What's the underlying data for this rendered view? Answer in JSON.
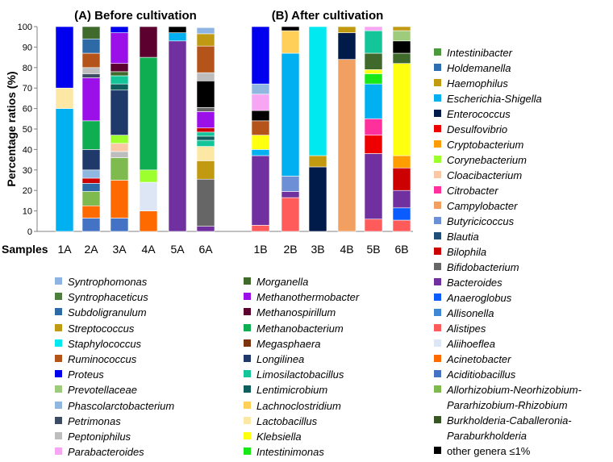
{
  "chart_data": {
    "type": "stacked-bar",
    "ylabel": "Percentage ratios (%)",
    "xlabel": "Samples",
    "ylim": [
      0,
      100
    ],
    "yticks": [
      0,
      10,
      20,
      30,
      40,
      50,
      60,
      70,
      80,
      90,
      100
    ],
    "panels": [
      {
        "title": "(A) Before cultivation",
        "samples": [
          {
            "name": "1A",
            "segments": [
              {
                "taxon": "Escherichia-Shigella",
                "value": 60
              },
              {
                "taxon": "Lactobacillus",
                "value": 10
              },
              {
                "taxon": "Proteus",
                "value": 30
              }
            ]
          },
          {
            "name": "2A",
            "segments": [
              {
                "taxon": "Aciditiobacillus",
                "value": 6.5
              },
              {
                "taxon": "Acinetobacter",
                "value": 6
              },
              {
                "taxon": "Allorhizobium-Neorhizobium-Pararhizobium-Rhizobium",
                "value": 7
              },
              {
                "taxon": "Subdoligranulum",
                "value": 4
              },
              {
                "taxon": "Bilophila",
                "value": 2.5
              },
              {
                "taxon": "Phascolarctobacterium",
                "value": 4
              },
              {
                "taxon": "Longilinea",
                "value": 10
              },
              {
                "taxon": "Methanobacterium",
                "value": 14
              },
              {
                "taxon": "Methanothermobacter",
                "value": 21
              },
              {
                "taxon": "Petrimonas",
                "value": 2
              },
              {
                "taxon": "Peptoniphilus",
                "value": 3
              },
              {
                "taxon": "Ruminococcus",
                "value": 7
              },
              {
                "taxon": "Subdoligranulum",
                "value": 7
              },
              {
                "taxon": "Morganella",
                "value": 6
              }
            ]
          },
          {
            "name": "3A",
            "segments": [
              {
                "taxon": "Aciditiobacillus",
                "value": 6.5
              },
              {
                "taxon": "Acinetobacter",
                "value": 18.5
              },
              {
                "taxon": "Allorhizobium-Neorhizobium-Pararhizobium-Rhizobium",
                "value": 11
              },
              {
                "taxon": "Peptoniphilus",
                "value": 3
              },
              {
                "taxon": "Cloacibacterium",
                "value": 4
              },
              {
                "taxon": "Corynebacterium",
                "value": 4
              },
              {
                "taxon": "Longilinea",
                "value": 22
              },
              {
                "taxon": "Lentimicrobium",
                "value": 3
              },
              {
                "taxon": "Limosilactobacillus",
                "value": 4
              },
              {
                "taxon": "Morganella",
                "value": 2
              },
              {
                "taxon": "Methanospirillum",
                "value": 4
              },
              {
                "taxon": "Methanothermobacter",
                "value": 15
              },
              {
                "taxon": "Proteus",
                "value": 3
              }
            ]
          },
          {
            "name": "4A",
            "segments": [
              {
                "taxon": "Acinetobacter",
                "value": 10
              },
              {
                "taxon": "Aliihoeflea",
                "value": 14
              },
              {
                "taxon": "Corynebacterium",
                "value": 6
              },
              {
                "taxon": "Methanobacterium",
                "value": 55
              },
              {
                "taxon": "Methanospirillum",
                "value": 15
              }
            ]
          },
          {
            "name": "5A",
            "segments": [
              {
                "taxon": "Bacteroides",
                "value": 93
              },
              {
                "taxon": "Escherichia-Shigella",
                "value": 4
              },
              {
                "taxon": "other genera ≤1%",
                "value": 3
              }
            ]
          },
          {
            "name": "6A",
            "segments": [
              {
                "taxon": "Bacteroides",
                "value": 2.5
              },
              {
                "taxon": "Bifidobacterium",
                "value": 23
              },
              {
                "taxon": "Haemophilus",
                "value": 9
              },
              {
                "taxon": "Lactobacillus",
                "value": 7
              },
              {
                "taxon": "Limosilactobacillus",
                "value": 3
              },
              {
                "taxon": "Lentimicrobium",
                "value": 2
              },
              {
                "taxon": "Limosilactobacillus",
                "value": 2
              },
              {
                "taxon": "Bilophila",
                "value": 2
              },
              {
                "taxon": "Methanothermobacter",
                "value": 8
              },
              {
                "taxon": "Bifidobacterium",
                "value": 2
              },
              {
                "taxon": "other genera ≤1%",
                "value": 13
              },
              {
                "taxon": "Peptoniphilus",
                "value": 4
              },
              {
                "taxon": "Ruminococcus",
                "value": 13
              },
              {
                "taxon": "Streptococcus",
                "value": 6
              },
              {
                "taxon": "Syntrophomonas",
                "value": 3
              }
            ]
          }
        ]
      },
      {
        "title": "(B) After cultivation",
        "samples": [
          {
            "name": "1B",
            "segments": [
              {
                "taxon": "Alistipes",
                "value": 3
              },
              {
                "taxon": "Bacteroides",
                "value": 34
              },
              {
                "taxon": "Escherichia-Shigella",
                "value": 3
              },
              {
                "taxon": "Klebsiella",
                "value": 7
              },
              {
                "taxon": "Ruminococcus",
                "value": 7
              },
              {
                "taxon": "other genera ≤1%",
                "value": 5
              },
              {
                "taxon": "Parabacteroides",
                "value": 8
              },
              {
                "taxon": "Phascolarctobacterium",
                "value": 5
              },
              {
                "taxon": "Proteus",
                "value": 28
              }
            ]
          },
          {
            "name": "2B",
            "segments": [
              {
                "taxon": "Alistipes",
                "value": 16.5
              },
              {
                "taxon": "Bacteroides",
                "value": 3
              },
              {
                "taxon": "Butyricicoccus",
                "value": 7.5
              },
              {
                "taxon": "Escherichia-Shigella",
                "value": 60
              },
              {
                "taxon": "Lachnoclostridium",
                "value": 11
              },
              {
                "taxon": "other genera ≤1%",
                "value": 2
              }
            ]
          },
          {
            "name": "3B",
            "segments": [
              {
                "taxon": "Enterococcus",
                "value": 31.5
              },
              {
                "taxon": "Haemophilus",
                "value": 5.5
              },
              {
                "taxon": "Staphylococcus",
                "value": 63
              }
            ]
          },
          {
            "name": "4B",
            "segments": [
              {
                "taxon": "Campylobacter",
                "value": 84
              },
              {
                "taxon": "Enterococcus",
                "value": 13
              },
              {
                "taxon": "Haemophilus",
                "value": 3
              }
            ]
          },
          {
            "name": "5B",
            "segments": [
              {
                "taxon": "Alistipes",
                "value": 6
              },
              {
                "taxon": "Bacteroides",
                "value": 32
              },
              {
                "taxon": "Desulfovibrio",
                "value": 9
              },
              {
                "taxon": "Citrobacter",
                "value": 8
              },
              {
                "taxon": "Escherichia-Shigella",
                "value": 17
              },
              {
                "taxon": "Intestinimonas",
                "value": 5
              },
              {
                "taxon": "Klebsiella",
                "value": 2
              },
              {
                "taxon": "Morganella",
                "value": 8
              },
              {
                "taxon": "Limosilactobacillus",
                "value": 11
              },
              {
                "taxon": "Parabacteroides",
                "value": 2
              }
            ]
          },
          {
            "name": "6B",
            "segments": [
              {
                "taxon": "Alistipes",
                "value": 5.5
              },
              {
                "taxon": "Anaeroglobus",
                "value": 6
              },
              {
                "taxon": "Bacteroides",
                "value": 8.5
              },
              {
                "taxon": "Bilophila",
                "value": 11
              },
              {
                "taxon": "Cryptobacterium",
                "value": 6
              },
              {
                "taxon": "Klebsiella",
                "value": 45
              },
              {
                "taxon": "Morganella",
                "value": 5
              },
              {
                "taxon": "other genera ≤1%",
                "value": 6
              },
              {
                "taxon": "Prevotellaceae",
                "value": 5
              },
              {
                "taxon": "Streptococcus",
                "value": 2
              }
            ]
          }
        ]
      }
    ]
  },
  "colors": {
    "Syntrophomonas": "#8eb4e3",
    "Syntrophaceticus": "#4f7f3f",
    "Subdoligranulum": "#2e6aa6",
    "Streptococcus": "#c09a12",
    "Staphylococcus": "#00e8f0",
    "Ruminococcus": "#b5541a",
    "Proteus": "#0000ee",
    "Prevotellaceae": "#9fcb7c",
    "Phascolarctobacterium": "#8fb7e0",
    "Petrimonas": "#3c4d63",
    "Peptoniphilus": "#bdbdbd",
    "Parabacteroides": "#f6a6f2",
    "Morganella": "#3f6a2c",
    "Methanothermobacter": "#9b10e8",
    "Methanospirillum": "#5c0030",
    "Methanobacterium": "#0fae50",
    "Megasphaera": "#7c3410",
    "Longilinea": "#1f3a6a",
    "Limosilactobacillus": "#14c59a",
    "Lentimicrobium": "#0d5e5c",
    "Lachnoclostridium": "#ffcf57",
    "Lactobacillus": "#fde7a4",
    "Klebsiella": "#ffff10",
    "Intestinimonas": "#18e818",
    "Intestinibacter": "#4d9a3e",
    "Holdemanella": "#2c6eb1",
    "Haemophilus": "#c29a10",
    "Escherichia-Shigella": "#00b0f0",
    "Enterococcus": "#001a4a",
    "Desulfovibrio": "#ee0000",
    "Cryptobacterium": "#ff9d00",
    "Corynebacterium": "#9dff2e",
    "Cloacibacterium": "#fbc8a6",
    "Citrobacter": "#ff2f9c",
    "Campylobacter": "#f2a061",
    "Butyricicoccus": "#6d8fd6",
    "Blautia": "#1f4e79",
    "Bilophila": "#cc0000",
    "Bifidobacterium": "#666666",
    "Bacteroides": "#7030a0",
    "Anaeroglobus": "#0a5cff",
    "Allisonella": "#3d87d4",
    "Alistipes": "#ff5b5b",
    "Aliihoeflea": "#dce6f5",
    "Acinetobacter": "#ff6a00",
    "Aciditiobacillus": "#4472c4",
    "Allorhizobium-Neorhizobium-Pararhizobium-Rhizobium": "#7fba4f",
    "Burkholderia-Caballeronia-Paraburkholderia": "#375623",
    "other genera ≤1%": "#000000"
  },
  "legend_bottom_left": [
    {
      "taxon": "Syntrophomonas",
      "label": "Syntrophomonas"
    },
    {
      "taxon": "Syntrophaceticus",
      "label": "Syntrophaceticus"
    },
    {
      "taxon": "Subdoligranulum",
      "label": "Subdoligranulum"
    },
    {
      "taxon": "Streptococcus",
      "label": "Streptococcus"
    },
    {
      "taxon": "Staphylococcus",
      "label": "Staphylococcus"
    },
    {
      "taxon": "Ruminococcus",
      "label": "Ruminococcus"
    },
    {
      "taxon": "Proteus",
      "label": "Proteus"
    },
    {
      "taxon": "Prevotellaceae",
      "label": "Prevotellaceae"
    },
    {
      "taxon": "Phascolarctobacterium",
      "label": "Phascolarctobacterium"
    },
    {
      "taxon": "Petrimonas",
      "label": "Petrimonas"
    },
    {
      "taxon": "Peptoniphilus",
      "label": "Peptoniphilus"
    },
    {
      "taxon": "Parabacteroides",
      "label": "Parabacteroides"
    }
  ],
  "legend_bottom_mid": [
    {
      "taxon": "Morganella",
      "label": "Morganella"
    },
    {
      "taxon": "Methanothermobacter",
      "label": "Methanothermobacter"
    },
    {
      "taxon": "Methanospirillum",
      "label": "Methanospirillum"
    },
    {
      "taxon": "Methanobacterium",
      "label": "Methanobacterium"
    },
    {
      "taxon": "Megasphaera",
      "label": "Megasphaera"
    },
    {
      "taxon": "Longilinea",
      "label": "Longilinea"
    },
    {
      "taxon": "Limosilactobacillus",
      "label": "Limosilactobacillus"
    },
    {
      "taxon": "Lentimicrobium",
      "label": "Lentimicrobium"
    },
    {
      "taxon": "Lachnoclostridium",
      "label": "Lachnoclostridium"
    },
    {
      "taxon": "Lactobacillus",
      "label": "Lactobacillus"
    },
    {
      "taxon": "Klebsiella",
      "label": "Klebsiella"
    },
    {
      "taxon": "Intestinimonas",
      "label": "Intestinimonas"
    }
  ],
  "legend_right": [
    {
      "taxon": "Intestinibacter",
      "label": "Intestinibacter"
    },
    {
      "taxon": "Holdemanella",
      "label": "Holdemanella"
    },
    {
      "taxon": "Haemophilus",
      "label": "Haemophilus"
    },
    {
      "taxon": "Escherichia-Shigella",
      "label": "Escherichia-Shigella"
    },
    {
      "taxon": "Enterococcus",
      "label": "Enterococcus"
    },
    {
      "taxon": "Desulfovibrio",
      "label": "Desulfovibrio"
    },
    {
      "taxon": "Cryptobacterium",
      "label": "Cryptobacterium"
    },
    {
      "taxon": "Corynebacterium",
      "label": "Corynebacterium"
    },
    {
      "taxon": "Cloacibacterium",
      "label": "Cloacibacterium"
    },
    {
      "taxon": "Citrobacter",
      "label": "Citrobacter"
    },
    {
      "taxon": "Campylobacter",
      "label": "Campylobacter"
    },
    {
      "taxon": "Butyricicoccus",
      "label": "Butyricicoccus"
    },
    {
      "taxon": "Blautia",
      "label": "Blautia"
    },
    {
      "taxon": "Bilophila",
      "label": "Bilophila"
    },
    {
      "taxon": "Bifidobacterium",
      "label": "Bifidobacterium"
    },
    {
      "taxon": "Bacteroides",
      "label": "Bacteroides"
    },
    {
      "taxon": "Anaeroglobus",
      "label": "Anaeroglobus"
    },
    {
      "taxon": "Allisonella",
      "label": "Allisonella"
    },
    {
      "taxon": "Alistipes",
      "label": "Alistipes"
    },
    {
      "taxon": "Aliihoeflea",
      "label": "Aliihoeflea"
    },
    {
      "taxon": "Acinetobacter",
      "label": "Acinetobacter"
    },
    {
      "taxon": "Aciditiobacillus",
      "label": "Aciditiobacillus"
    },
    {
      "taxon": "Allorhizobium-Neorhizobium-Pararhizobium-Rhizobium",
      "label": "Allorhizobium-Neorhizobium-",
      "label2": "Pararhizobium-Rhizobium"
    },
    {
      "taxon": "Burkholderia-Caballeronia-Paraburkholderia",
      "label": "Burkholderia-Caballeronia-",
      "label2": "Paraburkholderia"
    },
    {
      "taxon": "other genera ≤1%",
      "label": "other genera ≤1%",
      "plain": true
    }
  ]
}
